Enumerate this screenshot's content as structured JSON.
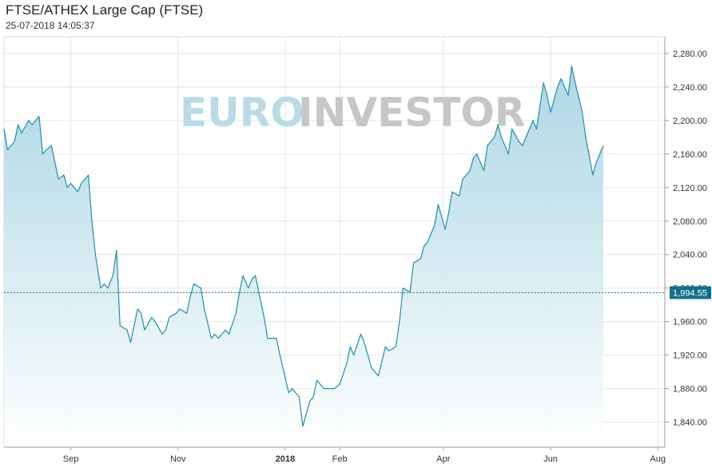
{
  "header": {
    "title": "FTSE/ATHEX Large Cap (FTSE)",
    "timestamp": "25-07-2018 14:05:37"
  },
  "watermark": {
    "part1": "EURO",
    "part2": "INVESTOR"
  },
  "colors": {
    "line": "#1c8fab",
    "fill_top": "#9fd0e0",
    "fill_bottom": "#ffffff",
    "current_badge": "#0e6f8f",
    "grid": "#e6e6e6"
  },
  "chart_data": {
    "type": "area",
    "title": "FTSE/ATHEX Large Cap (FTSE)",
    "xlabel": "",
    "ylabel": "",
    "ylim": [
      1810,
      2300
    ],
    "x_range": [
      "2017-07-25",
      "2018-08-05"
    ],
    "y_ticks": [
      1840,
      1880,
      1920,
      1960,
      2000,
      2040,
      2080,
      2120,
      2160,
      2200,
      2240,
      2280
    ],
    "y_tick_labels": [
      "1,840.00",
      "1,880.00",
      "1,920.00",
      "1,960.00",
      "2,000.00",
      "2,040.00",
      "2,080.00",
      "2,120.00",
      "2,160.00",
      "2,200.00",
      "2,240.00",
      "2,280.00"
    ],
    "x_ticks": [
      {
        "date": "2017-09-01",
        "label": "Sep",
        "bold": false
      },
      {
        "date": "2017-11-01",
        "label": "Nov",
        "bold": false
      },
      {
        "date": "2018-01-01",
        "label": "2018",
        "bold": true
      },
      {
        "date": "2018-02-01",
        "label": "Feb",
        "bold": false
      },
      {
        "date": "2018-04-01",
        "label": "Apr",
        "bold": false
      },
      {
        "date": "2018-06-01",
        "label": "Jun",
        "bold": false
      },
      {
        "date": "2018-08-01",
        "label": "Aug",
        "bold": false
      }
    ],
    "grid": true,
    "current_value": 1994.55,
    "current_label": "1,994.55",
    "series": [
      {
        "values": [
          [
            "2017-07-25",
            2190
          ],
          [
            "2017-07-27",
            2165
          ],
          [
            "2017-07-31",
            2175
          ],
          [
            "2017-08-02",
            2195
          ],
          [
            "2017-08-04",
            2185
          ],
          [
            "2017-08-08",
            2200
          ],
          [
            "2017-08-10",
            2195
          ],
          [
            "2017-08-14",
            2205
          ],
          [
            "2017-08-16",
            2160
          ],
          [
            "2017-08-18",
            2165
          ],
          [
            "2017-08-21",
            2170
          ],
          [
            "2017-08-23",
            2150
          ],
          [
            "2017-08-25",
            2130
          ],
          [
            "2017-08-28",
            2135
          ],
          [
            "2017-08-30",
            2120
          ],
          [
            "2017-09-01",
            2125
          ],
          [
            "2017-09-05",
            2115
          ],
          [
            "2017-09-07",
            2125
          ],
          [
            "2017-09-11",
            2135
          ],
          [
            "2017-09-13",
            2080
          ],
          [
            "2017-09-15",
            2040
          ],
          [
            "2017-09-18",
            2000
          ],
          [
            "2017-09-20",
            2005
          ],
          [
            "2017-09-22",
            2000
          ],
          [
            "2017-09-25",
            2015
          ],
          [
            "2017-09-27",
            2045
          ],
          [
            "2017-09-29",
            1955
          ],
          [
            "2017-10-03",
            1950
          ],
          [
            "2017-10-05",
            1935
          ],
          [
            "2017-10-09",
            1975
          ],
          [
            "2017-10-11",
            1970
          ],
          [
            "2017-10-13",
            1950
          ],
          [
            "2017-10-17",
            1965
          ],
          [
            "2017-10-19",
            1960
          ],
          [
            "2017-10-23",
            1945
          ],
          [
            "2017-10-25",
            1950
          ],
          [
            "2017-10-27",
            1965
          ],
          [
            "2017-10-31",
            1970
          ],
          [
            "2017-11-02",
            1975
          ],
          [
            "2017-11-06",
            1970
          ],
          [
            "2017-11-08",
            1990
          ],
          [
            "2017-11-10",
            2005
          ],
          [
            "2017-11-14",
            2000
          ],
          [
            "2017-11-16",
            1975
          ],
          [
            "2017-11-20",
            1940
          ],
          [
            "2017-11-22",
            1945
          ],
          [
            "2017-11-24",
            1940
          ],
          [
            "2017-11-28",
            1950
          ],
          [
            "2017-11-30",
            1945
          ],
          [
            "2017-12-04",
            1970
          ],
          [
            "2017-12-06",
            1995
          ],
          [
            "2017-12-08",
            2015
          ],
          [
            "2017-12-11",
            2000
          ],
          [
            "2017-12-13",
            2010
          ],
          [
            "2017-12-15",
            2015
          ],
          [
            "2017-12-18",
            1985
          ],
          [
            "2017-12-20",
            1965
          ],
          [
            "2017-12-22",
            1940
          ],
          [
            "2017-12-27",
            1940
          ],
          [
            "2017-12-29",
            1920
          ],
          [
            "2018-01-03",
            1875
          ],
          [
            "2018-01-05",
            1880
          ],
          [
            "2018-01-09",
            1870
          ],
          [
            "2018-01-11",
            1835
          ],
          [
            "2018-01-15",
            1865
          ],
          [
            "2018-01-17",
            1870
          ],
          [
            "2018-01-19",
            1890
          ],
          [
            "2018-01-23",
            1880
          ],
          [
            "2018-01-25",
            1880
          ],
          [
            "2018-01-29",
            1880
          ],
          [
            "2018-02-01",
            1885
          ],
          [
            "2018-02-05",
            1910
          ],
          [
            "2018-02-07",
            1930
          ],
          [
            "2018-02-09",
            1920
          ],
          [
            "2018-02-13",
            1945
          ],
          [
            "2018-02-15",
            1935
          ],
          [
            "2018-02-19",
            1905
          ],
          [
            "2018-02-21",
            1900
          ],
          [
            "2018-02-23",
            1895
          ],
          [
            "2018-02-27",
            1930
          ],
          [
            "2018-03-01",
            1925
          ],
          [
            "2018-03-05",
            1930
          ],
          [
            "2018-03-07",
            1960
          ],
          [
            "2018-03-09",
            2000
          ],
          [
            "2018-03-13",
            1995
          ],
          [
            "2018-03-15",
            2030
          ],
          [
            "2018-03-19",
            2035
          ],
          [
            "2018-03-21",
            2050
          ],
          [
            "2018-03-23",
            2055
          ],
          [
            "2018-03-27",
            2075
          ],
          [
            "2018-03-29",
            2100
          ],
          [
            "2018-04-02",
            2070
          ],
          [
            "2018-04-04",
            2090
          ],
          [
            "2018-04-06",
            2115
          ],
          [
            "2018-04-10",
            2110
          ],
          [
            "2018-04-12",
            2130
          ],
          [
            "2018-04-16",
            2140
          ],
          [
            "2018-04-18",
            2155
          ],
          [
            "2018-04-20",
            2160
          ],
          [
            "2018-04-24",
            2140
          ],
          [
            "2018-04-26",
            2170
          ],
          [
            "2018-04-30",
            2180
          ],
          [
            "2018-05-02",
            2195
          ],
          [
            "2018-05-04",
            2180
          ],
          [
            "2018-05-08",
            2160
          ],
          [
            "2018-05-10",
            2190
          ],
          [
            "2018-05-14",
            2175
          ],
          [
            "2018-05-16",
            2170
          ],
          [
            "2018-05-18",
            2180
          ],
          [
            "2018-05-22",
            2200
          ],
          [
            "2018-05-24",
            2190
          ],
          [
            "2018-05-28",
            2245
          ],
          [
            "2018-05-30",
            2230
          ],
          [
            "2018-06-01",
            2210
          ],
          [
            "2018-06-05",
            2240
          ],
          [
            "2018-06-07",
            2250
          ],
          [
            "2018-06-11",
            2230
          ],
          [
            "2018-06-13",
            2265
          ],
          [
            "2018-06-15",
            2245
          ],
          [
            "2018-06-19",
            2210
          ],
          [
            "2018-06-21",
            2180
          ],
          [
            "2018-06-25",
            2135
          ],
          [
            "2018-06-27",
            2150
          ],
          [
            "2018-07-01",
            2170
          ]
        ]
      }
    ]
  }
}
